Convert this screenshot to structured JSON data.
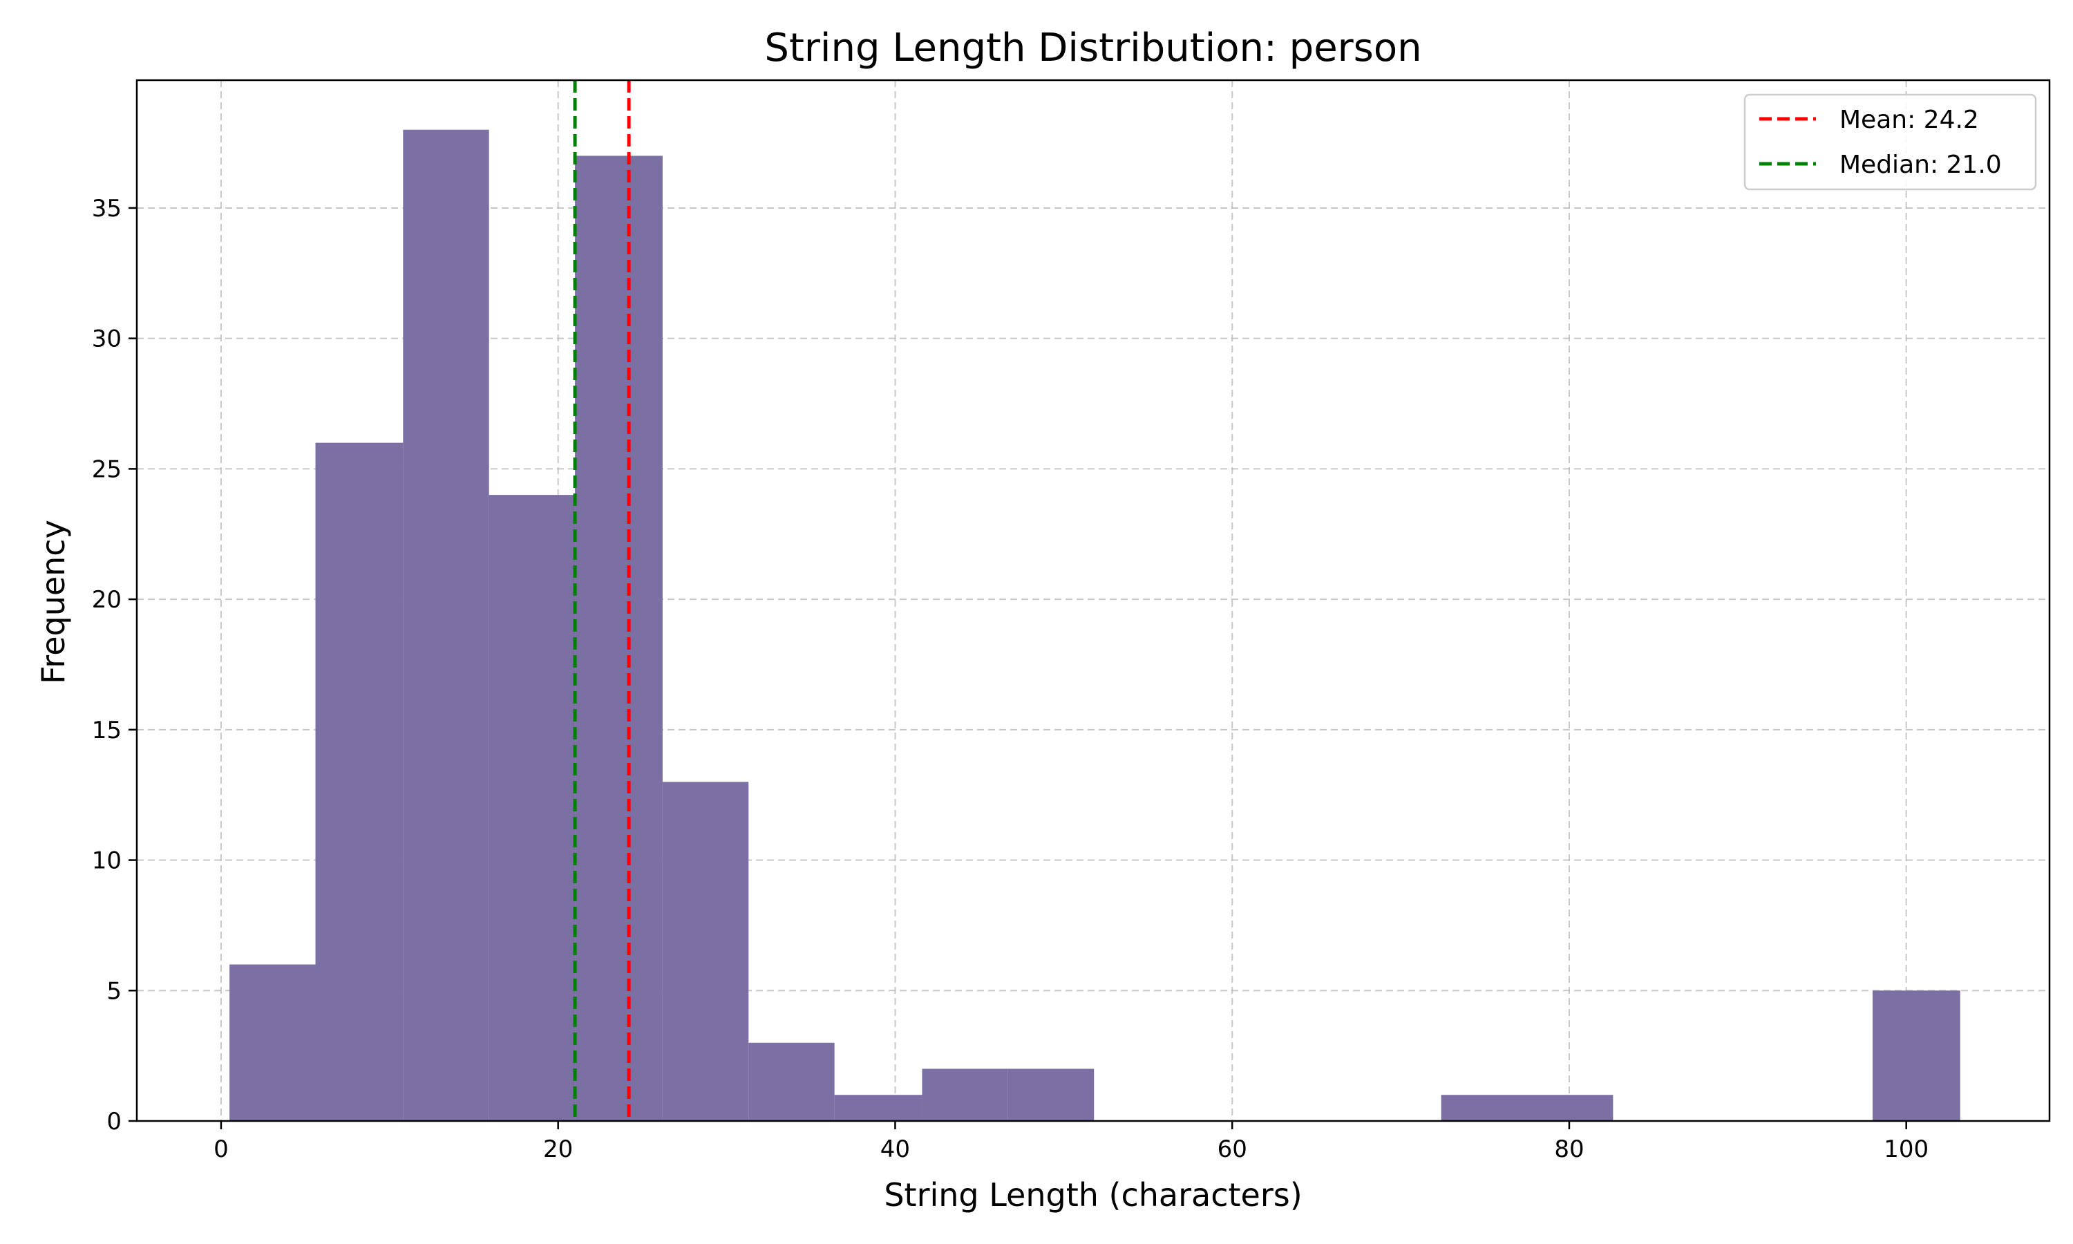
{
  "chart_data": {
    "type": "bar",
    "title": "String Length Distribution: person",
    "xlabel": "String Length (characters)",
    "ylabel": "Frequency",
    "xlim": [
      -5,
      108.5
    ],
    "ylim": [
      0,
      39.9
    ],
    "xticks": [
      0,
      20,
      40,
      60,
      80,
      100
    ],
    "yticks": [
      0,
      5,
      10,
      15,
      20,
      25,
      30,
      35
    ],
    "grid": true,
    "bar_color": "#7b6fa3",
    "bins": [
      {
        "x0": 0.5,
        "x1": 5.6,
        "count": 6
      },
      {
        "x0": 5.6,
        "x1": 10.8,
        "count": 26
      },
      {
        "x0": 10.8,
        "x1": 15.9,
        "count": 38
      },
      {
        "x0": 15.9,
        "x1": 21.0,
        "count": 24
      },
      {
        "x0": 21.0,
        "x1": 26.2,
        "count": 37
      },
      {
        "x0": 26.2,
        "x1": 31.3,
        "count": 13
      },
      {
        "x0": 31.3,
        "x1": 36.4,
        "count": 3
      },
      {
        "x0": 36.4,
        "x1": 41.6,
        "count": 1
      },
      {
        "x0": 41.6,
        "x1": 46.7,
        "count": 2
      },
      {
        "x0": 46.7,
        "x1": 51.8,
        "count": 2
      },
      {
        "x0": 51.8,
        "x1": 57.0,
        "count": 0
      },
      {
        "x0": 57.0,
        "x1": 62.1,
        "count": 0
      },
      {
        "x0": 62.1,
        "x1": 67.2,
        "count": 0
      },
      {
        "x0": 67.2,
        "x1": 72.4,
        "count": 0
      },
      {
        "x0": 72.4,
        "x1": 77.5,
        "count": 1
      },
      {
        "x0": 77.5,
        "x1": 82.6,
        "count": 1
      },
      {
        "x0": 82.6,
        "x1": 87.8,
        "count": 0
      },
      {
        "x0": 87.8,
        "x1": 92.9,
        "count": 0
      },
      {
        "x0": 92.9,
        "x1": 98.0,
        "count": 0
      },
      {
        "x0": 98.0,
        "x1": 103.2,
        "count": 5
      }
    ],
    "reference_lines": [
      {
        "name": "Mean: 24.2",
        "x": 24.2,
        "color": "#ff0000"
      },
      {
        "name": "Median: 21.0",
        "x": 21.0,
        "color": "#008000"
      }
    ],
    "legend_position": "top-right"
  }
}
